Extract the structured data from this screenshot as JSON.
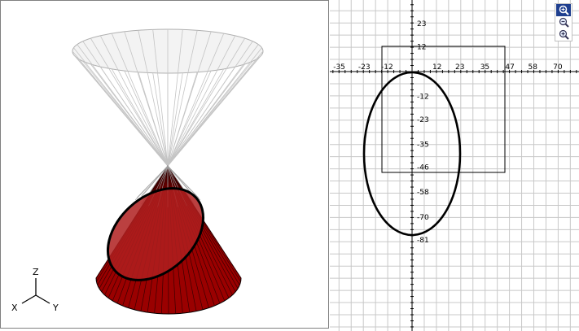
{
  "view3d": {
    "axis_labels": {
      "z": "Z",
      "x": "X",
      "y": "Y"
    },
    "cone_color": "#9a0000",
    "ellipse_color": "#000000"
  },
  "view2d": {
    "x_ticks": [
      "-35",
      "-23",
      "-12",
      "12",
      "23",
      "35",
      "47",
      "58",
      "70"
    ],
    "y_ticks": [
      "23",
      "12",
      "-12",
      "-23",
      "-35",
      "-46",
      "-58",
      "-70",
      "-81"
    ],
    "grid_color": "#c8c8c8",
    "curve_color": "#000000"
  },
  "zoom_tools": [
    {
      "name": "pan-zoom-icon",
      "active": true
    },
    {
      "name": "zoom-out-icon",
      "active": false
    },
    {
      "name": "zoom-in-icon",
      "active": false
    }
  ]
}
